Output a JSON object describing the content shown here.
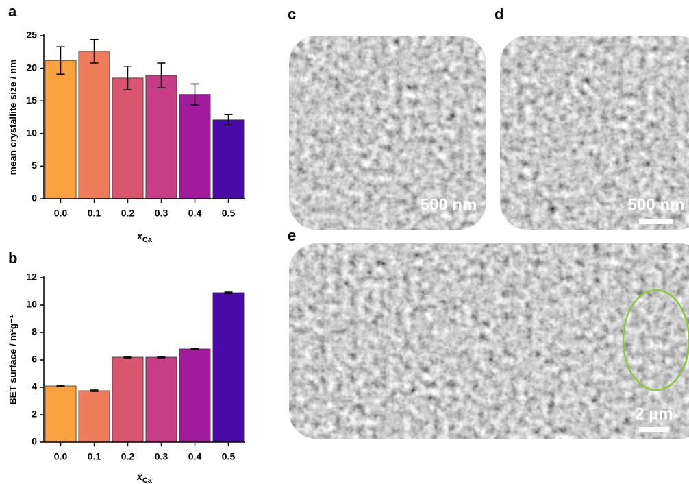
{
  "chart_data": [
    {
      "type": "bar",
      "panel": "a",
      "ylabel": "mean crystallite size / nm",
      "xlabel": {
        "text": "x",
        "sub": "Ca"
      },
      "categories": [
        "0.0",
        "0.1",
        "0.2",
        "0.3",
        "0.4",
        "0.5"
      ],
      "values": [
        21.2,
        22.6,
        18.5,
        18.9,
        16.0,
        12.1
      ],
      "errors": [
        2.1,
        1.8,
        1.8,
        1.9,
        1.6,
        0.8
      ],
      "colors": [
        "#f9a03f",
        "#ee7b5a",
        "#d9566e",
        "#c63f86",
        "#a21b9c",
        "#4a0aa8"
      ],
      "ylim": [
        0,
        25
      ],
      "yticks": [
        0,
        5,
        10,
        15,
        20,
        25
      ]
    },
    {
      "type": "bar",
      "panel": "b",
      "ylabel": "BET surface / m²g⁻¹",
      "xlabel": {
        "text": "x",
        "sub": "Ca"
      },
      "categories": [
        "0.0",
        "0.1",
        "0.2",
        "0.3",
        "0.4",
        "0.5"
      ],
      "values": [
        4.1,
        3.75,
        6.2,
        6.2,
        6.8,
        10.9
      ],
      "errors": [
        0.05,
        0.05,
        0.05,
        0.05,
        0.05,
        0.05
      ],
      "colors": [
        "#f9a03f",
        "#ee7b5a",
        "#d9566e",
        "#c63f86",
        "#a21b9c",
        "#4a0aa8"
      ],
      "ylim": [
        0,
        12
      ],
      "yticks": [
        0,
        2,
        4,
        6,
        8,
        10,
        12
      ]
    }
  ],
  "images": [
    {
      "panel": "c",
      "scale": "500 nm"
    },
    {
      "panel": "d",
      "scale": "500 nm"
    },
    {
      "panel": "e",
      "scale": "2 µm"
    }
  ]
}
